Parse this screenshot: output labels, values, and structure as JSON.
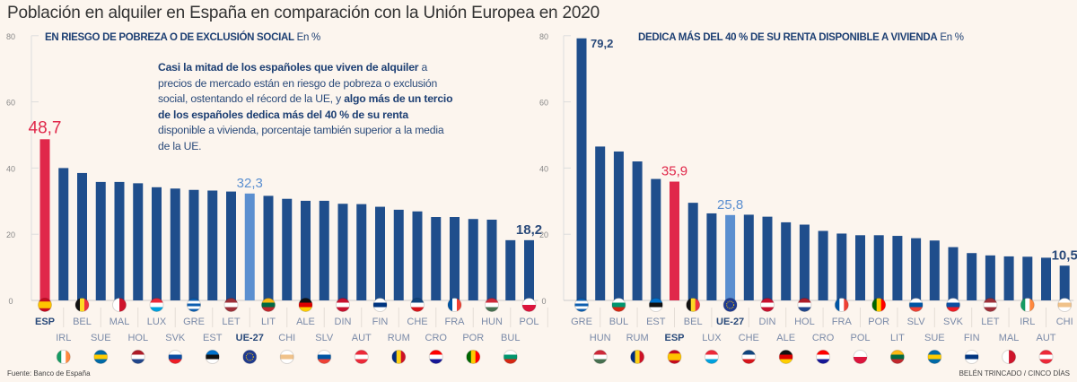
{
  "title": "Población en alquiler en España en comparación con la Unión Europea en 2020",
  "source": "Fuente: Banco de España",
  "credit": "BELÉN TRINCADO / CINCO DÍAS",
  "note": {
    "b1": "Casi la mitad de los españoles que viven de alquiler",
    "t1": " a precios de mercado están en riesgo de pobreza o exclusión social, ostentando el récord de la UE, y ",
    "b2": "algo más de un tercio de los españoles dedica más del 40 % de su renta",
    "t2": " disponible a vivienda, porcentaje también superior a la media de la UE."
  },
  "colors": {
    "bar": "#1f4e8c",
    "spain": "#e0284a",
    "eu": "#5b8fd0",
    "label": "#7a8aa8",
    "label_bold": "#2a4a7a"
  },
  "chart_data": [
    {
      "type": "bar",
      "title": "EN RIESGO DE POBREZA O DE EXCLUSIÓN SOCIAL",
      "unit": "En %",
      "ylim": [
        0,
        80
      ],
      "yticks": [
        0,
        20,
        40,
        60,
        80
      ],
      "categories": [
        "ESP",
        "IRL",
        "BEL",
        "SUE",
        "MAL",
        "HOL",
        "LUX",
        "SVK",
        "GRE",
        "EST",
        "LET",
        "UE-27",
        "LIT",
        "CHI",
        "ALE",
        "SLV",
        "DIN",
        "AUT",
        "FIN",
        "RUM",
        "CHE",
        "CRO",
        "FRA",
        "POR",
        "HUN",
        "BUL",
        "POL"
      ],
      "values": [
        48.7,
        40.0,
        38.5,
        35.8,
        35.8,
        35.4,
        34.2,
        33.8,
        33.4,
        33.2,
        32.9,
        32.3,
        31.6,
        30.7,
        30.1,
        30.1,
        29.2,
        29.1,
        28.3,
        27.4,
        26.9,
        25.2,
        25.2,
        24.6,
        24.4,
        18.2,
        18.2
      ],
      "data_labels": {
        "ESP": "48,7",
        "UE-27": "32,3",
        "POL": "18,2"
      }
    },
    {
      "type": "bar",
      "title": "DEDICA MÁS DEL 40 % DE SU RENTA DISPONIBLE A VIVIENDA",
      "unit": "En %",
      "ylim": [
        0,
        80
      ],
      "yticks": [
        0,
        20,
        40,
        60,
        80
      ],
      "categories": [
        "GRE",
        "HUN",
        "BUL",
        "RUM",
        "EST",
        "ESP",
        "BEL",
        "LUX",
        "UE-27",
        "CHE",
        "DIN",
        "ALE",
        "HOL",
        "CRO",
        "FRA",
        "POL",
        "POR",
        "LIT",
        "SLV",
        "SUE",
        "SVK",
        "FIN",
        "LET",
        "MAL",
        "IRL",
        "AUT",
        "CHI"
      ],
      "values": [
        79.2,
        46.5,
        45.0,
        42.0,
        36.7,
        35.9,
        29.5,
        26.3,
        25.8,
        25.9,
        25.3,
        23.6,
        22.9,
        21.0,
        20.2,
        19.7,
        19.7,
        19.5,
        18.8,
        18.1,
        16.1,
        14.3,
        13.6,
        13.3,
        13.2,
        12.9,
        10.5
      ],
      "data_labels": {
        "GRE": "79,2",
        "ESP": "35,9",
        "UE-27": "25,8",
        "CHI": "10,5"
      }
    }
  ],
  "flags": {
    "ESP": {
      "dir": "h",
      "c": [
        "#c60b1e",
        "#ffc400",
        "#ffc400",
        "#c60b1e"
      ]
    },
    "IRL": {
      "dir": "v",
      "c": [
        "#169b62",
        "#ffffff",
        "#ff883e"
      ]
    },
    "BEL": {
      "dir": "v",
      "c": [
        "#111111",
        "#fdda24",
        "#ef3340"
      ]
    },
    "SUE": {
      "dir": "h",
      "c": [
        "#006aa7",
        "#fecc00",
        "#006aa7"
      ]
    },
    "MAL": {
      "dir": "v",
      "c": [
        "#ffffff",
        "#cf142b"
      ]
    },
    "HOL": {
      "dir": "h",
      "c": [
        "#ae1c28",
        "#ffffff",
        "#21468b"
      ]
    },
    "LUX": {
      "dir": "h",
      "c": [
        "#ed2939",
        "#ffffff",
        "#00a1de"
      ]
    },
    "SVK": {
      "dir": "h",
      "c": [
        "#ffffff",
        "#0b4ea2",
        "#ee1c25"
      ]
    },
    "GRE": {
      "dir": "h",
      "c": [
        "#0d5eaf",
        "#ffffff",
        "#0d5eaf",
        "#ffffff",
        "#0d5eaf"
      ]
    },
    "EST": {
      "dir": "h",
      "c": [
        "#0072ce",
        "#111111",
        "#ffffff"
      ]
    },
    "LET": {
      "dir": "h",
      "c": [
        "#9e3039",
        "#ffffff",
        "#9e3039"
      ]
    },
    "UE-27": {
      "dir": "h",
      "c": [
        "#1f3a8f"
      ]
    },
    "LIT": {
      "dir": "h",
      "c": [
        "#fdb913",
        "#006a44",
        "#c1272d"
      ]
    },
    "CHI": {
      "dir": "h",
      "c": [
        "#ffffff",
        "#f0c28a",
        "#ffffff"
      ]
    },
    "ALE": {
      "dir": "h",
      "c": [
        "#111111",
        "#dd0000",
        "#ffce00"
      ]
    },
    "SLV": {
      "dir": "h",
      "c": [
        "#ffffff",
        "#0055a4",
        "#ef4135"
      ]
    },
    "DIN": {
      "dir": "h",
      "c": [
        "#c8102e",
        "#ffffff",
        "#c8102e"
      ]
    },
    "AUT": {
      "dir": "h",
      "c": [
        "#ed2939",
        "#ffffff",
        "#ed2939"
      ]
    },
    "FIN": {
      "dir": "h",
      "c": [
        "#ffffff",
        "#003580",
        "#ffffff"
      ]
    },
    "RUM": {
      "dir": "v",
      "c": [
        "#002b7f",
        "#fcd116",
        "#ce1126"
      ]
    },
    "CHE": {
      "dir": "h",
      "c": [
        "#11457e",
        "#ffffff",
        "#d7141a"
      ]
    },
    "CRO": {
      "dir": "h",
      "c": [
        "#ff0000",
        "#ffffff",
        "#171796"
      ]
    },
    "FRA": {
      "dir": "v",
      "c": [
        "#0055a4",
        "#ffffff",
        "#ef4135"
      ]
    },
    "POR": {
      "dir": "v",
      "c": [
        "#006600",
        "#ffcc00",
        "#ff0000"
      ]
    },
    "HUN": {
      "dir": "h",
      "c": [
        "#ce2939",
        "#ffffff",
        "#477050"
      ]
    },
    "BUL": {
      "dir": "h",
      "c": [
        "#ffffff",
        "#00966e",
        "#d62612"
      ]
    },
    "POL": {
      "dir": "h",
      "c": [
        "#ffffff",
        "#dc143c"
      ]
    }
  }
}
